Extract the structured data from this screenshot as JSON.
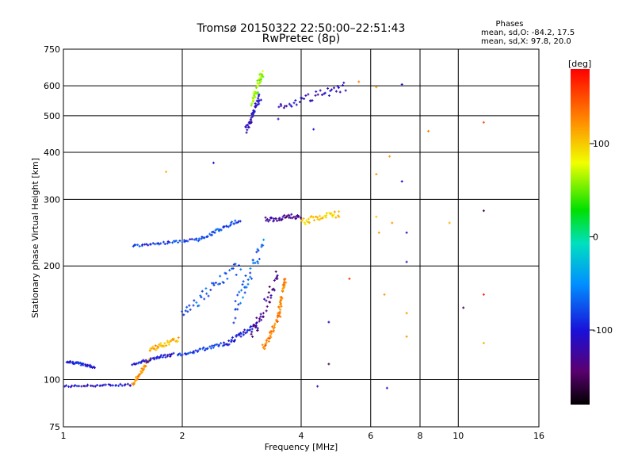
{
  "chart_data": {
    "type": "scatter",
    "title": "Tromsø 20150322 22:50:00–22:51:43",
    "subtitle": "RwPretec (8p)",
    "xlabel": "Frequency [MHz]",
    "ylabel": "Stationary phase Virtual Height [km]",
    "x_scale": "log",
    "y_scale": "log",
    "xlim": [
      1,
      16
    ],
    "ylim": [
      75,
      750
    ],
    "x_ticks": [
      1,
      2,
      4,
      6,
      8,
      10,
      16
    ],
    "x_tick_labels": [
      "1",
      "2",
      "4",
      "6",
      "8",
      "10",
      "16"
    ],
    "y_ticks": [
      75,
      100,
      200,
      300,
      400,
      500,
      600,
      750
    ],
    "y_tick_labels": [
      "75",
      "100",
      "200",
      "300",
      "400",
      "500",
      "600",
      "750"
    ],
    "grid": true,
    "stats": {
      "heading": "Phases",
      "line_o": "mean, sd,O: -84.2, 17.5",
      "line_x": "mean, sd,X:  97.8, 20.0"
    },
    "colorbar": {
      "label": "[deg]",
      "range": [
        -180,
        180
      ],
      "ticks": [
        100,
        0,
        -100
      ],
      "tick_labels": [
        "100",
        "0",
        "-100"
      ]
    },
    "traces": [
      {
        "x": [
          1.0,
          1.5
        ],
        "y": [
          96,
          97
        ],
        "phase": -105,
        "jitter": 0.012
      },
      {
        "x": [
          1.02,
          1.2
        ],
        "y": [
          112,
          108
        ],
        "phase": -95,
        "jitter": 0.015
      },
      {
        "x": [
          1.5,
          1.65
        ],
        "y": [
          97,
          113
        ],
        "phase": 120,
        "jitter": 0.025
      },
      {
        "x": [
          1.5,
          1.9
        ],
        "y": [
          110,
          117
        ],
        "phase": -100,
        "jitter": 0.02
      },
      {
        "x": [
          1.65,
          1.95
        ],
        "y": [
          120,
          128
        ],
        "phase": 110,
        "jitter": 0.03
      },
      {
        "x": [
          1.95,
          2.6
        ],
        "y": [
          116,
          125
        ],
        "phase": -85,
        "jitter": 0.02
      },
      {
        "x": [
          2.0,
          2.8
        ],
        "y": [
          150,
          200
        ],
        "phase": -75,
        "jitter": 0.08
      },
      {
        "x": [
          2.6,
          3.1
        ],
        "y": [
          125,
          140
        ],
        "phase": -100,
        "jitter": 0.03
      },
      {
        "x": [
          2.7,
          3.2
        ],
        "y": [
          150,
          228
        ],
        "phase": -70,
        "jitter": 0.12
      },
      {
        "x": [
          3.0,
          3.5
        ],
        "y": [
          130,
          190
        ],
        "phase": -130,
        "jitter": 0.1
      },
      {
        "x": [
          3.2,
          3.55
        ],
        "y": [
          120,
          150
        ],
        "phase": 130,
        "jitter": 0.05
      },
      {
        "x": [
          3.5,
          3.65
        ],
        "y": [
          150,
          185
        ],
        "phase": 125,
        "jitter": 0.05
      },
      {
        "x": [
          1.5,
          2.2
        ],
        "y": [
          226,
          235
        ],
        "phase": -85,
        "jitter": 0.015
      },
      {
        "x": [
          2.2,
          2.8
        ],
        "y": [
          235,
          265
        ],
        "phase": -80,
        "jitter": 0.02
      },
      {
        "x": [
          3.25,
          4.0
        ],
        "y": [
          265,
          272
        ],
        "phase": -130,
        "jitter": 0.03
      },
      {
        "x": [
          4.0,
          5.0
        ],
        "y": [
          262,
          275
        ],
        "phase": 100,
        "jitter": 0.04
      },
      {
        "x": [
          2.9,
          3.15
        ],
        "y": [
          455,
          560
        ],
        "phase": -110,
        "jitter": 0.05
      },
      {
        "x": [
          3.0,
          3.2
        ],
        "y": [
          540,
          650
        ],
        "phase": 60,
        "jitter": 0.06
      },
      {
        "x": [
          3.5,
          5.2
        ],
        "y": [
          520,
          600
        ],
        "phase": -110,
        "jitter": 0.06
      }
    ],
    "scattered_points": [
      {
        "x": 6.2,
        "y": 350,
        "phase": 120
      },
      {
        "x": 6.2,
        "y": 595,
        "phase": 120
      },
      {
        "x": 6.8,
        "y": 260,
        "phase": 120
      },
      {
        "x": 7.2,
        "y": 335,
        "phase": -100
      },
      {
        "x": 7.4,
        "y": 245,
        "phase": -110
      },
      {
        "x": 7.4,
        "y": 205,
        "phase": -110
      },
      {
        "x": 7.2,
        "y": 605,
        "phase": -110
      },
      {
        "x": 6.5,
        "y": 168,
        "phase": 120
      },
      {
        "x": 7.4,
        "y": 150,
        "phase": 120
      },
      {
        "x": 7.4,
        "y": 130,
        "phase": 120
      },
      {
        "x": 6.6,
        "y": 95,
        "phase": -110
      },
      {
        "x": 8.4,
        "y": 455,
        "phase": 130
      },
      {
        "x": 9.5,
        "y": 260,
        "phase": 110
      },
      {
        "x": 10.3,
        "y": 155,
        "phase": -140
      },
      {
        "x": 11.6,
        "y": 280,
        "phase": -150
      },
      {
        "x": 11.6,
        "y": 480,
        "phase": 150
      },
      {
        "x": 11.6,
        "y": 168,
        "phase": 170
      },
      {
        "x": 11.6,
        "y": 125,
        "phase": 110
      },
      {
        "x": 4.7,
        "y": 110,
        "phase": -150
      },
      {
        "x": 4.7,
        "y": 142,
        "phase": -110
      },
      {
        "x": 4.4,
        "y": 96,
        "phase": -110
      },
      {
        "x": 5.3,
        "y": 185,
        "phase": 160
      },
      {
        "x": 5.6,
        "y": 615,
        "phase": 130
      },
      {
        "x": 1.82,
        "y": 355,
        "phase": 110
      },
      {
        "x": 2.4,
        "y": 375,
        "phase": -100
      },
      {
        "x": 3.5,
        "y": 490,
        "phase": -110
      },
      {
        "x": 4.3,
        "y": 460,
        "phase": -100
      },
      {
        "x": 6.2,
        "y": 270,
        "phase": 100
      },
      {
        "x": 6.3,
        "y": 245,
        "phase": 120
      },
      {
        "x": 6.7,
        "y": 390,
        "phase": 120
      }
    ]
  }
}
